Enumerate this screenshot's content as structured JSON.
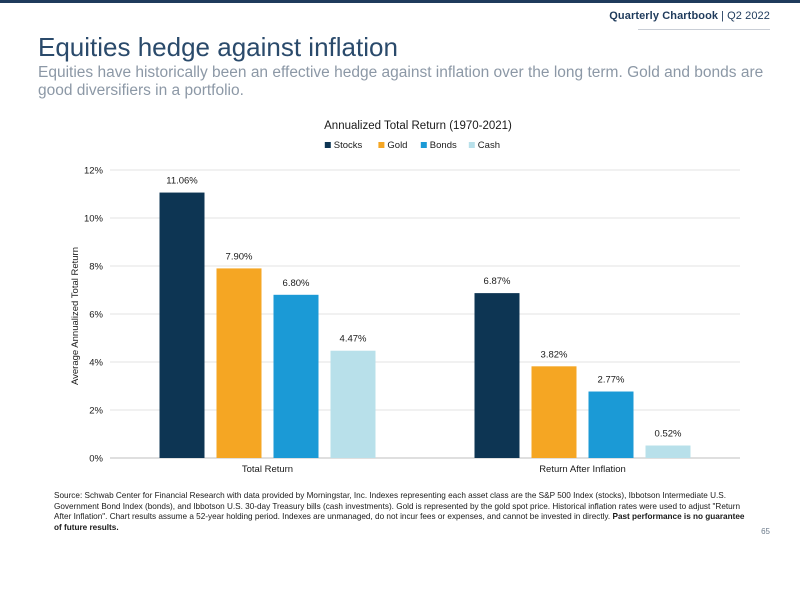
{
  "header": {
    "brand": "Quarterly Chartbook",
    "separator": "|",
    "period": "Q2 2022"
  },
  "title": "Equities hedge against inflation",
  "subtitle": "Equities have historically been an effective hedge against inflation over the long term. Gold and bonds are good diversifiers in a portfolio.",
  "chart_data": {
    "type": "bar",
    "title": "Annualized Total Return (1970-2021)",
    "ylabel": "Average Annualized Total Return",
    "xlabel": "",
    "categories": [
      "Total Return",
      "Return After Inflation"
    ],
    "series": [
      {
        "name": "Stocks",
        "color": "#0d3553",
        "values": [
          11.06,
          6.87
        ],
        "labels": [
          "11.06%",
          "6.87%"
        ]
      },
      {
        "name": "Gold",
        "color": "#f5a623",
        "values": [
          7.9,
          3.82
        ],
        "labels": [
          "7.90%",
          "3.82%"
        ]
      },
      {
        "name": "Bonds",
        "color": "#1b9ad6",
        "values": [
          6.8,
          2.77
        ],
        "labels": [
          "6.80%",
          "2.77%"
        ]
      },
      {
        "name": "Cash",
        "color": "#b8e0ea",
        "values": [
          4.47,
          0.52
        ],
        "labels": [
          "4.47%",
          "0.52%"
        ]
      }
    ],
    "ylim": [
      0,
      12
    ],
    "yticks": [
      0,
      2,
      4,
      6,
      8,
      10,
      12
    ],
    "ytick_labels": [
      "0%",
      "2%",
      "4%",
      "6%",
      "8%",
      "10%",
      "12%"
    ],
    "grid": true,
    "legend_position": "top-center"
  },
  "footer": {
    "source_text": "Source: Schwab Center for Financial Research with data provided by Morningstar, Inc. Indexes representing each asset class are the S&P 500 Index (stocks), Ibbotson Intermediate U.S. Government Bond Index (bonds), and Ibbotson U.S. 30-day Treasury bills (cash investments). Gold is represented by the gold spot price. Historical inflation rates were used to adjust \"Return After Inflation\". Chart results assume a 52-year holding period. Indexes are unmanaged, do not incur fees or expenses, and cannot be invested in directly.",
    "source_emphasis": "Past performance is no guarantee of future results.",
    "page_number": "65"
  }
}
